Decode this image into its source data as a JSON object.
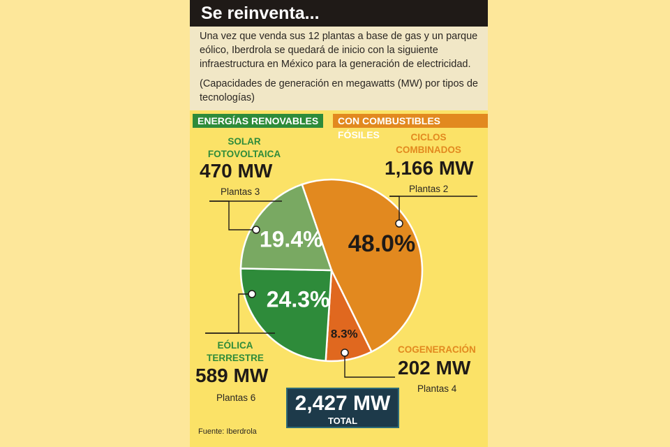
{
  "title": "Se reinventa...",
  "intro": "Una vez que venda sus 12 plantas a base de gas y un parque eólico, Iberdrola se quedará de inicio con la siguiente infraestructura en México para la generación de electricidad.",
  "units_note": "(Capacidades de generación en megawatts (MW) por tipos de tecnologías)",
  "group_labels": {
    "renewable": "ENERGÍAS RENOVABLES",
    "fossil": "CON COMBUSTIBLES FÓSILES"
  },
  "colors": {
    "ciclos": "#e2891f",
    "cogeneracion": "#e0681f",
    "eolica": "#2e8b3a",
    "solar": "#79a962",
    "total_box": "#1d3a4a"
  },
  "chart_data": {
    "type": "pie",
    "unit": "MW",
    "slices": [
      {
        "key": "ciclos",
        "label": "CICLOS COMBINADOS",
        "percent": 48.0,
        "percent_label": "48.0%",
        "mw_label": "1,166 MW",
        "plants_label": "Plantas 2",
        "group": "fossil"
      },
      {
        "key": "cogeneracion",
        "label": "COGENERACIÓN",
        "percent": 8.3,
        "percent_label": "8.3%",
        "mw_label": "202 MW",
        "plants_label": "Plantas 4",
        "group": "fossil"
      },
      {
        "key": "eolica",
        "label": "EÓLICA TERRESTRE",
        "percent": 24.3,
        "percent_label": "24.3%",
        "mw_label": "589 MW",
        "plants_label": "Plantas 6",
        "group": "renewable"
      },
      {
        "key": "solar",
        "label": "SOLAR FOTOVOLTAICA",
        "percent": 19.4,
        "percent_label": "19.4%",
        "mw_label": "470 MW",
        "plants_label": "Plantas 3",
        "group": "renewable"
      }
    ],
    "total_value": "2,427 MW",
    "total_label": "TOTAL"
  },
  "source": "Fuente: Iberdrola"
}
